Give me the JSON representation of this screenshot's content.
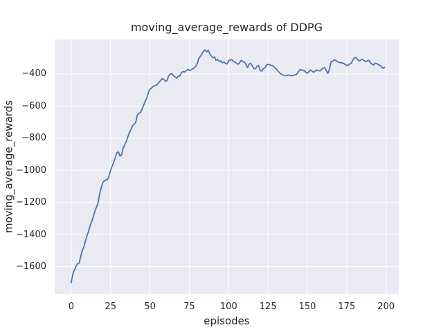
{
  "figure": {
    "background_color": "#ffffff",
    "text_color": "#262626"
  },
  "chart_data": {
    "type": "line",
    "title": "moving_average_rewards of DDPG",
    "xlabel": "episodes",
    "ylabel": "moving_average_rewards",
    "x_ticks": [
      0,
      25,
      50,
      75,
      100,
      125,
      150,
      175,
      200
    ],
    "y_ticks": [
      -400,
      -600,
      -800,
      -1000,
      -1200,
      -1400,
      -1600
    ],
    "xlim": [
      -10.5,
      208
    ],
    "ylim": [
      -1770,
      -185
    ],
    "grid": true,
    "grid_color": "#ffffff",
    "plot_background_color": "#eaeaf2",
    "legend": "none",
    "series": [
      {
        "color": "#4c72b0",
        "line_width": 1.8,
        "points": [
          [
            0,
            -1700
          ],
          [
            1,
            -1645
          ],
          [
            2,
            -1622
          ],
          [
            3,
            -1598
          ],
          [
            4,
            -1582
          ],
          [
            5,
            -1578
          ],
          [
            6,
            -1540
          ],
          [
            7,
            -1500
          ],
          [
            8,
            -1478
          ],
          [
            9,
            -1442
          ],
          [
            10,
            -1408
          ],
          [
            11,
            -1380
          ],
          [
            12,
            -1345
          ],
          [
            13,
            -1318
          ],
          [
            14,
            -1290
          ],
          [
            15,
            -1256
          ],
          [
            16,
            -1230
          ],
          [
            17,
            -1205
          ],
          [
            18,
            -1150
          ],
          [
            19,
            -1110
          ],
          [
            20,
            -1078
          ],
          [
            21,
            -1066
          ],
          [
            22,
            -1060
          ],
          [
            23,
            -1058
          ],
          [
            24,
            -1036
          ],
          [
            25,
            -1000
          ],
          [
            26,
            -975
          ],
          [
            27,
            -950
          ],
          [
            28,
            -920
          ],
          [
            29,
            -892
          ],
          [
            30,
            -885
          ],
          [
            31,
            -912
          ],
          [
            32,
            -902
          ],
          [
            33,
            -862
          ],
          [
            34,
            -840
          ],
          [
            35,
            -820
          ],
          [
            36,
            -790
          ],
          [
            37,
            -765
          ],
          [
            38,
            -745
          ],
          [
            39,
            -722
          ],
          [
            40,
            -714
          ],
          [
            41,
            -700
          ],
          [
            42,
            -656
          ],
          [
            43,
            -646
          ],
          [
            44,
            -640
          ],
          [
            45,
            -620
          ],
          [
            46,
            -595
          ],
          [
            47,
            -570
          ],
          [
            48,
            -550
          ],
          [
            49,
            -516
          ],
          [
            50,
            -496
          ],
          [
            51,
            -488
          ],
          [
            52,
            -478
          ],
          [
            53,
            -474
          ],
          [
            54,
            -470
          ],
          [
            55,
            -461
          ],
          [
            56,
            -450
          ],
          [
            57,
            -438
          ],
          [
            58,
            -428
          ],
          [
            59,
            -436
          ],
          [
            60,
            -447
          ],
          [
            61,
            -438
          ],
          [
            62,
            -410
          ],
          [
            63,
            -400
          ],
          [
            64,
            -398
          ],
          [
            65,
            -411
          ],
          [
            66,
            -419
          ],
          [
            67,
            -426
          ],
          [
            68,
            -414
          ],
          [
            69,
            -412
          ],
          [
            70,
            -392
          ],
          [
            71,
            -384
          ],
          [
            72,
            -388
          ],
          [
            73,
            -380
          ],
          [
            74,
            -373
          ],
          [
            75,
            -377
          ],
          [
            76,
            -375
          ],
          [
            77,
            -370
          ],
          [
            78,
            -362
          ],
          [
            79,
            -354
          ],
          [
            80,
            -335
          ],
          [
            81,
            -305
          ],
          [
            82,
            -290
          ],
          [
            83,
            -275
          ],
          [
            84,
            -260
          ],
          [
            85,
            -250
          ],
          [
            86,
            -262
          ],
          [
            87,
            -252
          ],
          [
            88,
            -275
          ],
          [
            89,
            -288
          ],
          [
            90,
            -300
          ],
          [
            91,
            -294
          ],
          [
            92,
            -316
          ],
          [
            93,
            -310
          ],
          [
            94,
            -322
          ],
          [
            95,
            -318
          ],
          [
            96,
            -331
          ],
          [
            97,
            -325
          ],
          [
            98,
            -334
          ],
          [
            99,
            -338
          ],
          [
            100,
            -318
          ],
          [
            101,
            -314
          ],
          [
            102,
            -310
          ],
          [
            103,
            -323
          ],
          [
            104,
            -326
          ],
          [
            105,
            -333
          ],
          [
            106,
            -339
          ],
          [
            107,
            -330
          ],
          [
            108,
            -315
          ],
          [
            109,
            -322
          ],
          [
            110,
            -326
          ],
          [
            111,
            -341
          ],
          [
            112,
            -360
          ],
          [
            113,
            -338
          ],
          [
            114,
            -333
          ],
          [
            115,
            -350
          ],
          [
            116,
            -366
          ],
          [
            117,
            -368
          ],
          [
            118,
            -352
          ],
          [
            119,
            -347
          ],
          [
            120,
            -378
          ],
          [
            121,
            -383
          ],
          [
            122,
            -366
          ],
          [
            123,
            -361
          ],
          [
            124,
            -345
          ],
          [
            125,
            -340
          ],
          [
            126,
            -342
          ],
          [
            127,
            -347
          ],
          [
            128,
            -348
          ],
          [
            129,
            -358
          ],
          [
            130,
            -366
          ],
          [
            131,
            -378
          ],
          [
            132,
            -390
          ],
          [
            133,
            -398
          ],
          [
            134,
            -404
          ],
          [
            135,
            -408
          ],
          [
            136,
            -411
          ],
          [
            137,
            -409
          ],
          [
            138,
            -407
          ],
          [
            139,
            -409
          ],
          [
            140,
            -411
          ],
          [
            141,
            -410
          ],
          [
            142,
            -406
          ],
          [
            143,
            -404
          ],
          [
            144,
            -390
          ],
          [
            145,
            -376
          ],
          [
            146,
            -374
          ],
          [
            147,
            -377
          ],
          [
            148,
            -379
          ],
          [
            149,
            -390
          ],
          [
            150,
            -396
          ],
          [
            151,
            -386
          ],
          [
            152,
            -376
          ],
          [
            153,
            -383
          ],
          [
            154,
            -389
          ],
          [
            155,
            -382
          ],
          [
            156,
            -376
          ],
          [
            157,
            -379
          ],
          [
            158,
            -382
          ],
          [
            159,
            -372
          ],
          [
            160,
            -363
          ],
          [
            161,
            -361
          ],
          [
            162,
            -378
          ],
          [
            163,
            -397
          ],
          [
            164,
            -372
          ],
          [
            165,
            -325
          ],
          [
            166,
            -320
          ],
          [
            167,
            -311
          ],
          [
            168,
            -316
          ],
          [
            169,
            -323
          ],
          [
            170,
            -328
          ],
          [
            171,
            -330
          ],
          [
            172,
            -331
          ],
          [
            173,
            -335
          ],
          [
            174,
            -340
          ],
          [
            175,
            -347
          ],
          [
            176,
            -345
          ],
          [
            177,
            -338
          ],
          [
            178,
            -331
          ],
          [
            179,
            -312
          ],
          [
            180,
            -297
          ],
          [
            181,
            -300
          ],
          [
            182,
            -312
          ],
          [
            183,
            -318
          ],
          [
            184,
            -313
          ],
          [
            185,
            -309
          ],
          [
            186,
            -317
          ],
          [
            187,
            -323
          ],
          [
            188,
            -318
          ],
          [
            189,
            -315
          ],
          [
            190,
            -330
          ],
          [
            191,
            -338
          ],
          [
            192,
            -345
          ],
          [
            193,
            -333
          ],
          [
            194,
            -336
          ],
          [
            195,
            -341
          ],
          [
            196,
            -346
          ],
          [
            197,
            -352
          ],
          [
            198,
            -366
          ],
          [
            199,
            -359
          ]
        ]
      }
    ]
  }
}
